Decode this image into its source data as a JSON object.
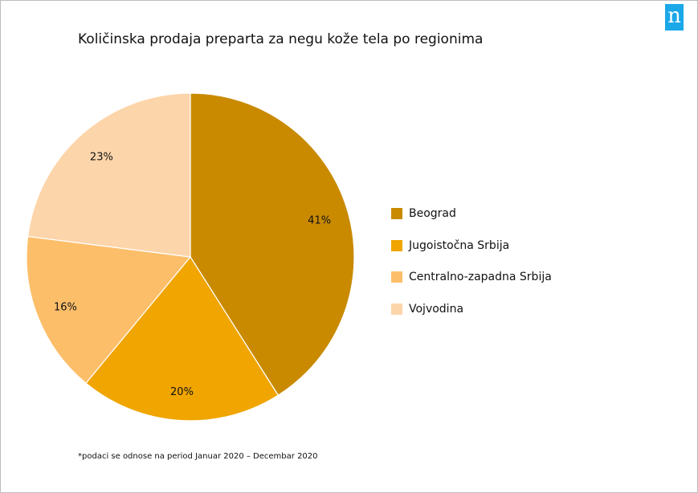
{
  "chart_data": {
    "type": "pie",
    "title": "Količinska prodaja preparta za negu kože tela po regionima",
    "categories": [
      "Beograd",
      "Jugoistočna Srbija",
      "Centralno-zapadna Srbija",
      "Vojvodina"
    ],
    "values": [
      41,
      20,
      16,
      23
    ],
    "labels": [
      "41%",
      "20%",
      "16%",
      "23%"
    ],
    "colors": [
      "#C98A00",
      "#F0A500",
      "#FDBE6A",
      "#FDD5AA"
    ],
    "legend_position": "right"
  },
  "footnote": "*podaci se odnose na period Januar 2020 – Decembar 2020",
  "logo": {
    "text": "n",
    "color": "#1BA8E8"
  }
}
